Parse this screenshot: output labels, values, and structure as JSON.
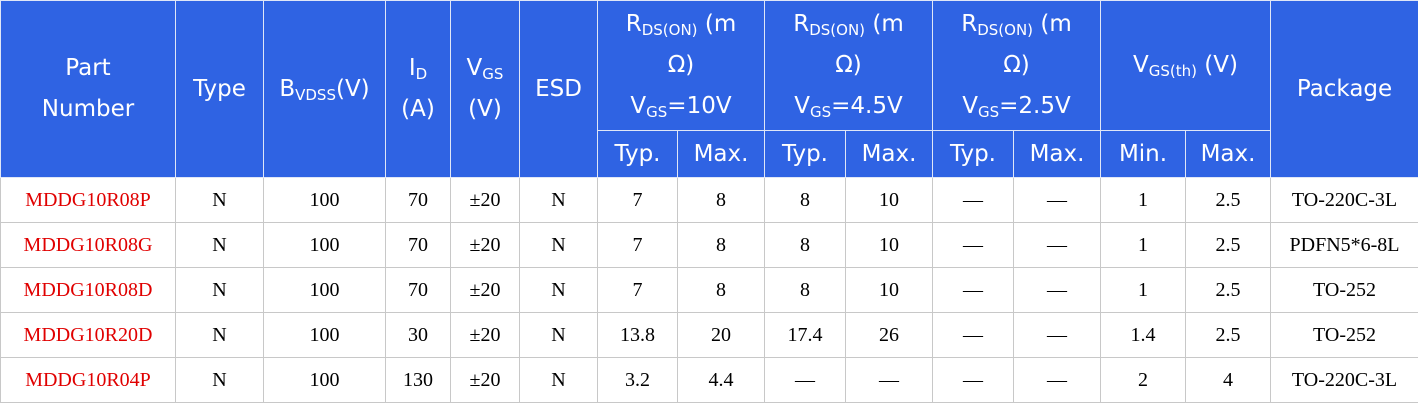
{
  "table": {
    "columns": [
      {
        "lines": [
          [
            {
              "text": "Part"
            }
          ],
          [
            {
              "text": "Number"
            }
          ]
        ]
      },
      {
        "lines": [
          [
            {
              "text": "Type"
            }
          ]
        ]
      },
      {
        "lines": [
          [
            {
              "text": "B"
            },
            {
              "sub": "VDSS"
            },
            {
              "text": "(V)"
            }
          ]
        ]
      },
      {
        "lines": [
          [
            {
              "text": "I"
            },
            {
              "sub": "D"
            }
          ],
          [
            {
              "text": "(A)"
            }
          ]
        ]
      },
      {
        "lines": [
          [
            {
              "text": "V"
            },
            {
              "sub": "GS"
            }
          ],
          [
            {
              "text": "(V)"
            }
          ]
        ]
      },
      {
        "lines": [
          [
            {
              "text": "ESD"
            }
          ]
        ]
      },
      {
        "lines": [
          [
            {
              "text": "R"
            },
            {
              "sub": "DS(ON)"
            },
            {
              "text": " (m"
            }
          ],
          [
            {
              "text": "Ω)"
            }
          ],
          [
            {
              "text": "V"
            },
            {
              "sub": "GS"
            },
            {
              "text": "=10V"
            }
          ]
        ],
        "sub_headers": [
          "Typ.",
          "Max."
        ]
      },
      {
        "lines": [
          [
            {
              "text": "R"
            },
            {
              "sub": "DS(ON)"
            },
            {
              "text": " (m"
            }
          ],
          [
            {
              "text": "Ω)"
            }
          ],
          [
            {
              "text": "V"
            },
            {
              "sub": "GS"
            },
            {
              "text": "=4.5V"
            }
          ]
        ],
        "sub_headers": [
          "Typ.",
          "Max."
        ]
      },
      {
        "lines": [
          [
            {
              "text": "R"
            },
            {
              "sub": "DS(ON)"
            },
            {
              "text": " (m"
            }
          ],
          [
            {
              "text": "Ω)"
            }
          ],
          [
            {
              "text": "V"
            },
            {
              "sub": "GS"
            },
            {
              "text": "=2.5V"
            }
          ]
        ],
        "sub_headers": [
          "Typ.",
          "Max."
        ]
      },
      {
        "lines": [
          [
            {
              "text": "V"
            },
            {
              "sub": "GS(th)"
            },
            {
              "text": " (V)"
            }
          ]
        ],
        "sub_headers": [
          "Min.",
          "Max."
        ]
      },
      {
        "lines": [
          [
            {
              "text": "Package"
            }
          ]
        ]
      }
    ],
    "rows": [
      [
        "MDDG10R08P",
        "N",
        "100",
        "70",
        "±20",
        "N",
        "7",
        "8",
        "8",
        "10",
        "—",
        "—",
        "1",
        "2.5",
        "TO-220C-3L"
      ],
      [
        "MDDG10R08G",
        "N",
        "100",
        "70",
        "±20",
        "N",
        "7",
        "8",
        "8",
        "10",
        "—",
        "—",
        "1",
        "2.5",
        "PDFN5*6-8L"
      ],
      [
        "MDDG10R08D",
        "N",
        "100",
        "70",
        "±20",
        "N",
        "7",
        "8",
        "8",
        "10",
        "—",
        "—",
        "1",
        "2.5",
        "TO-252"
      ],
      [
        "MDDG10R20D",
        "N",
        "100",
        "30",
        "±20",
        "N",
        "13.8",
        "20",
        "17.4",
        "26",
        "—",
        "—",
        "1.4",
        "2.5",
        "TO-252"
      ],
      [
        "MDDG10R04P",
        "N",
        "100",
        "130",
        "±20",
        "N",
        "3.2",
        "4.4",
        "—",
        "—",
        "—",
        "—",
        "2",
        "4",
        "TO-220C-3L"
      ]
    ]
  }
}
